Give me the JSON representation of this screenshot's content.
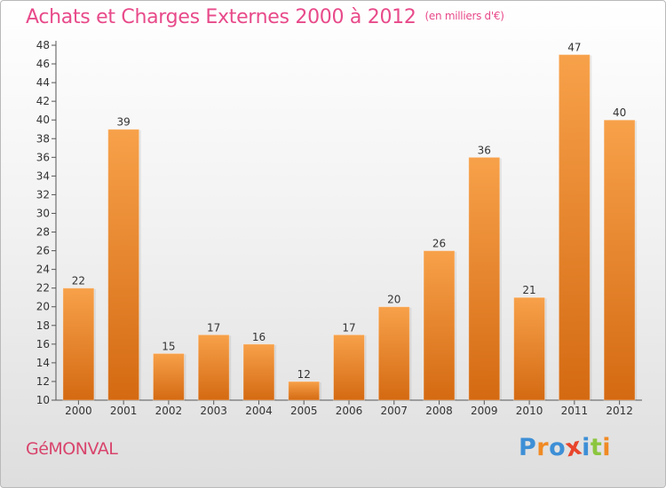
{
  "chart_data": {
    "type": "bar",
    "title": "Achats et Charges Externes 2000 à 2012",
    "unit_note": "(en milliers d'€)",
    "categories": [
      "2000",
      "2001",
      "2002",
      "2003",
      "2004",
      "2005",
      "2006",
      "2007",
      "2008",
      "2009",
      "2010",
      "2011",
      "2012"
    ],
    "values": [
      22,
      39,
      15,
      17,
      16,
      12,
      17,
      20,
      26,
      36,
      21,
      47,
      40
    ],
    "data_labels": [
      "22",
      "39",
      "15",
      "17",
      "16",
      "12",
      "17",
      "20",
      "26",
      "36",
      "21",
      "47",
      "40"
    ],
    "y_ticks": [
      "10",
      "12",
      "14",
      "16",
      "18",
      "20",
      "22",
      "24",
      "26",
      "28",
      "30",
      "32",
      "34",
      "36",
      "38",
      "40",
      "42",
      "44",
      "46",
      "48"
    ],
    "ylim": [
      10,
      48
    ],
    "xlabel": "",
    "ylabel": "",
    "grid": false,
    "legend": "none",
    "bar_color_top": "#f7a14a",
    "bar_color_bottom": "#d46a12",
    "title_color": "#e84a8a"
  },
  "location": "GéMONVAL",
  "brand": {
    "name": "Proxiti",
    "letters": [
      "P",
      "r",
      "o",
      "x",
      "i",
      "t",
      "i"
    ],
    "letter_colors": [
      "#3d8fd6",
      "#f08a24",
      "#3d8fd6",
      "#e8452c",
      "#3d8fd6",
      "#8cc63f",
      "#f08a24"
    ]
  }
}
